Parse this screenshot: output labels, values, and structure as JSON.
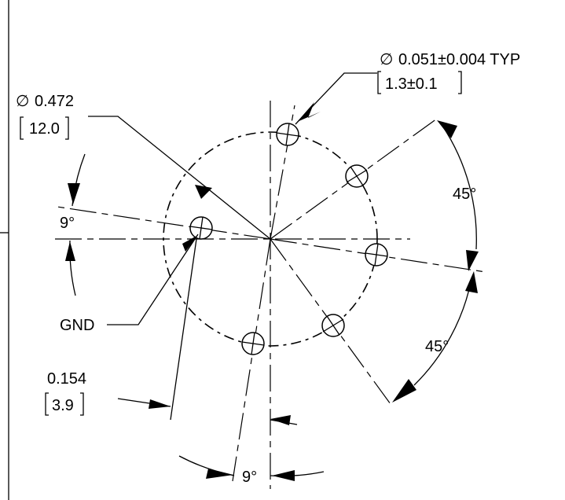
{
  "labels": {
    "bolt_circle_dia_in": "0.472",
    "bolt_circle_dia_mm": "12.0",
    "hole_dia_in": "0.051±0.004 TYP",
    "hole_dia_mm": "1.3±0.1",
    "angle_top_right": "45°",
    "angle_bottom_right": "45°",
    "angle_left": "9°",
    "angle_bottom": "9°",
    "gnd": "GND",
    "offset_in": "0.154",
    "offset_mm": "3.9",
    "diameter_symbol": "∅"
  }
}
